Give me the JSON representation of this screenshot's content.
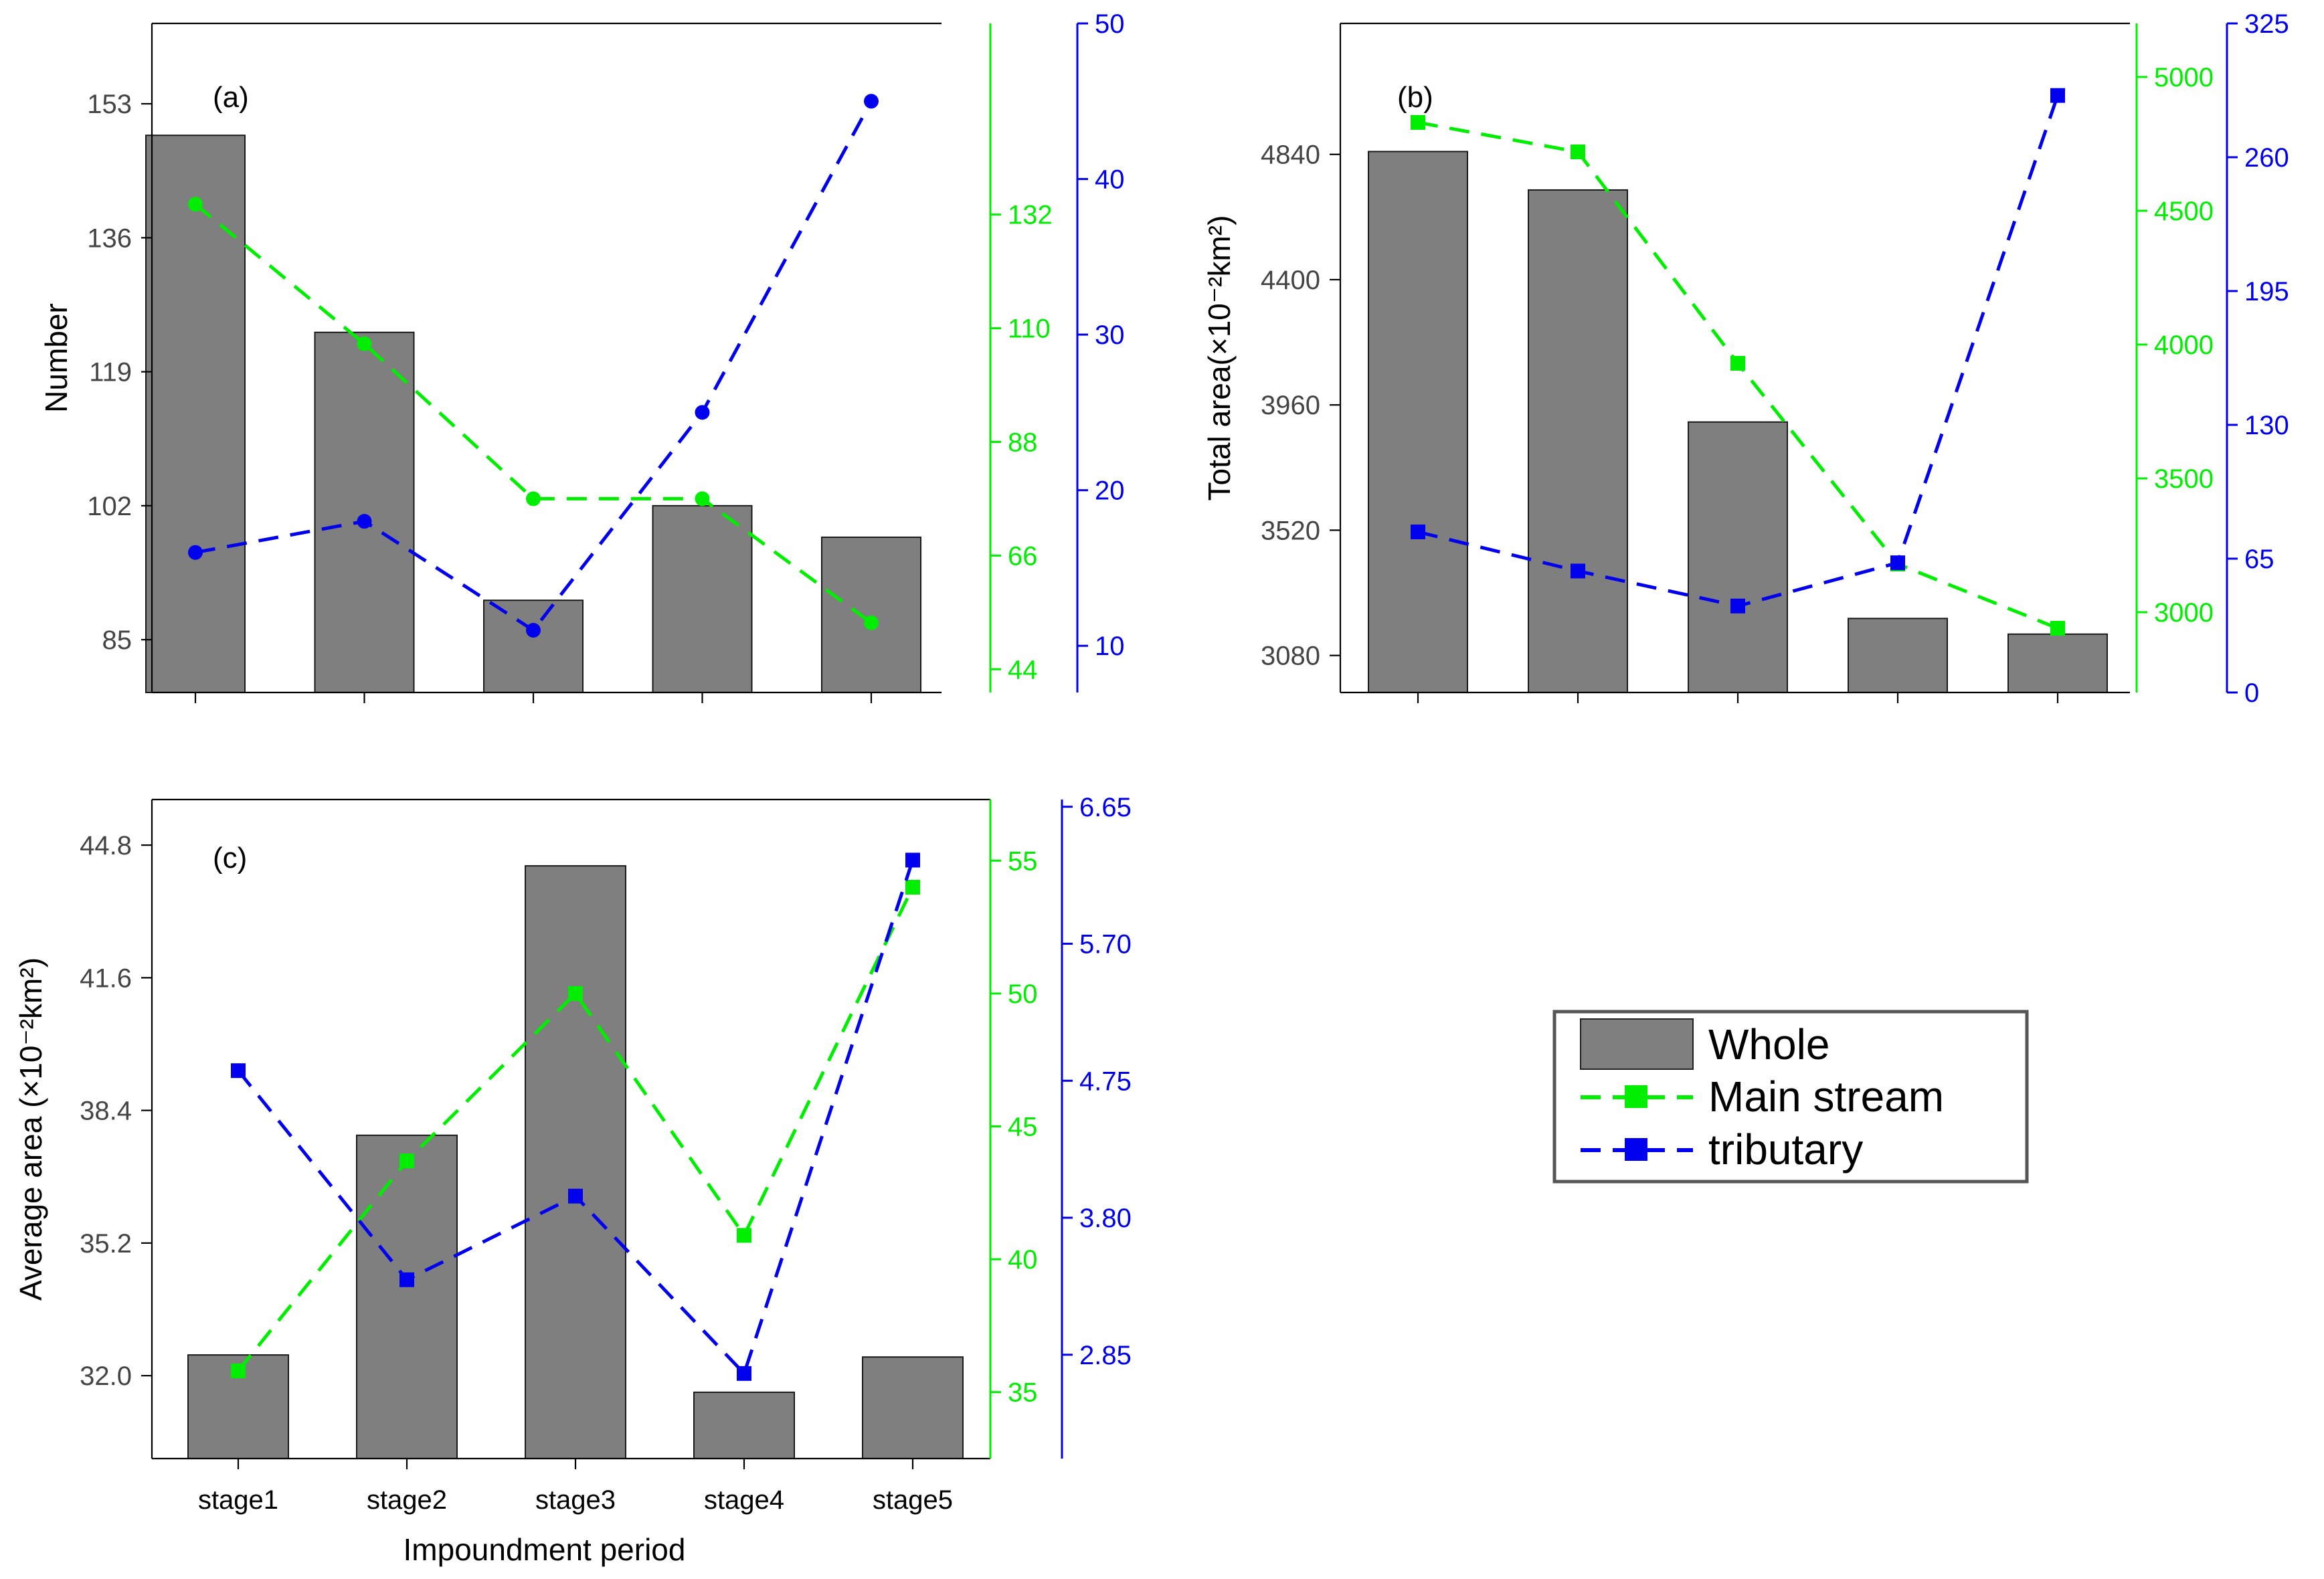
{
  "colors": {
    "bar": "#7f7f7f",
    "main": "#00ee00",
    "trib": "#0000ee",
    "axis": "#000000"
  },
  "x_axis_title": "Impoundment period",
  "legend": {
    "whole": "Whole",
    "main": "Main stream",
    "trib": "tributary"
  },
  "chart_data": [
    {
      "id": "a",
      "type": "bar",
      "panel_label": "(a)",
      "categories": [
        "stage1",
        "stage2",
        "stage3",
        "stage4",
        "stage5"
      ],
      "show_category_labels": false,
      "show_x_title": false,
      "left_axis": {
        "label": "Number",
        "range": [
          78.3,
          163.2
        ],
        "ticks": [
          85,
          102,
          119,
          136,
          153
        ],
        "tick_labels": [
          "85",
          "102",
          "119",
          "136",
          "153"
        ]
      },
      "green_axis": {
        "range": [
          39.5,
          169
        ],
        "ticks": [
          44,
          66,
          88,
          110,
          132
        ],
        "tick_labels": [
          "44",
          "66",
          "88",
          "110",
          "132"
        ]
      },
      "blue_axis": {
        "range": [
          7,
          50
        ],
        "ticks": [
          10,
          20,
          30,
          40,
          50
        ],
        "tick_labels": [
          "10",
          "20",
          "30",
          "40",
          "50"
        ]
      },
      "series": [
        {
          "name": "Whole",
          "kind": "bar",
          "values": [
            149,
            124,
            90,
            102,
            98
          ]
        },
        {
          "name": "Main stream",
          "kind": "line",
          "axis": "green",
          "marker": "circle",
          "values": [
            134,
            107,
            77,
            77,
            53
          ]
        },
        {
          "name": "tributary",
          "kind": "line",
          "axis": "blue",
          "marker": "circle",
          "values": [
            16,
            18,
            11,
            25,
            45
          ]
        }
      ]
    },
    {
      "id": "b",
      "type": "bar",
      "panel_label": "(b)",
      "categories": [
        "stage1",
        "stage2",
        "stage3",
        "stage4",
        "stage5"
      ],
      "show_category_labels": false,
      "show_x_title": false,
      "left_axis": {
        "label": "Total area(×10⁻²km²)",
        "range": [
          2950,
          5300
        ],
        "ticks": [
          3080,
          3520,
          3960,
          4400,
          4840
        ],
        "tick_labels": [
          "3080",
          "3520",
          "3960",
          "4400",
          "4840"
        ]
      },
      "green_axis": {
        "range": [
          2700,
          5200
        ],
        "ticks": [
          3000,
          3500,
          4000,
          4500,
          5000
        ],
        "tick_labels": [
          "3000",
          "3500",
          "4000",
          "4500",
          "5000"
        ]
      },
      "blue_axis": {
        "range": [
          0,
          325
        ],
        "ticks": [
          0,
          65,
          130,
          195,
          260,
          325
        ],
        "tick_labels": [
          "0",
          "65",
          "130",
          "195",
          "260",
          "325"
        ]
      },
      "series": [
        {
          "name": "Whole",
          "kind": "bar",
          "values": [
            4850,
            4715,
            3900,
            3210,
            3155
          ]
        },
        {
          "name": "Main stream",
          "kind": "line",
          "axis": "green",
          "marker": "square",
          "values": [
            4830,
            4720,
            3930,
            3180,
            2940
          ]
        },
        {
          "name": "tributary",
          "kind": "line",
          "axis": "blue",
          "marker": "square",
          "values": [
            78,
            59,
            42,
            63,
            290
          ]
        }
      ]
    },
    {
      "id": "c",
      "type": "bar",
      "panel_label": "(c)",
      "categories": [
        "stage1",
        "stage2",
        "stage3",
        "stage4",
        "stage5"
      ],
      "show_category_labels": true,
      "show_x_title": true,
      "left_axis": {
        "label": "Average area (×10⁻²km²)",
        "range": [
          30.0,
          45.9
        ],
        "ticks": [
          32.0,
          35.2,
          38.4,
          41.6,
          44.8
        ],
        "tick_labels": [
          "32.0",
          "35.2",
          "38.4",
          "41.6",
          "44.8"
        ]
      },
      "green_axis": {
        "range": [
          32.5,
          57.3
        ],
        "ticks": [
          35,
          40,
          45,
          50,
          55
        ],
        "tick_labels": [
          "35",
          "40",
          "45",
          "50",
          "55"
        ]
      },
      "blue_axis": {
        "range": [
          2.13,
          6.7
        ],
        "ticks": [
          2.85,
          3.8,
          4.75,
          5.7,
          6.65
        ],
        "tick_labels": [
          "2.85",
          "3.80",
          "4.75",
          "5.70",
          "6.65"
        ]
      },
      "series": [
        {
          "name": "Whole",
          "kind": "bar",
          "values": [
            32.5,
            37.8,
            44.3,
            31.6,
            32.45
          ]
        },
        {
          "name": "Main stream",
          "kind": "line",
          "axis": "green",
          "marker": "square",
          "values": [
            35.8,
            43.7,
            50.0,
            40.9,
            54.0
          ]
        },
        {
          "name": "tributary",
          "kind": "line",
          "axis": "blue",
          "marker": "square",
          "values": [
            4.82,
            3.37,
            3.95,
            2.72,
            6.28
          ]
        }
      ]
    }
  ]
}
